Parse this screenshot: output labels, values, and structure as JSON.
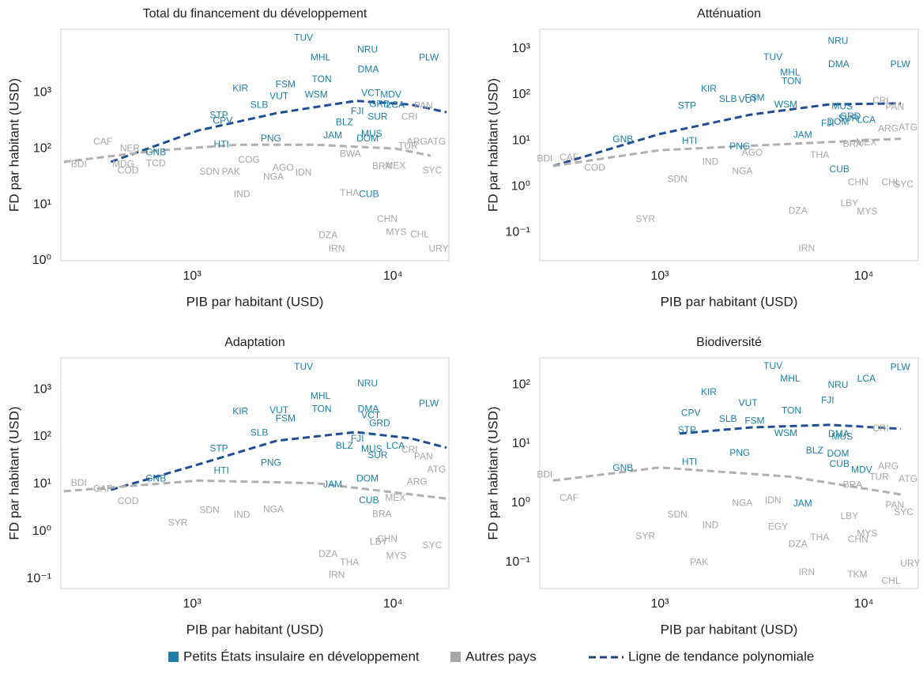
{
  "legend": [
    {
      "name": "Petits États insulaire en développement",
      "color": "#1b7fa6"
    },
    {
      "name": "Autres pays",
      "color": "#a6a6a6"
    },
    {
      "name": "Ligne de tendance polynomiale",
      "color": "#1f3f80"
    }
  ],
  "chart_data": [
    {
      "type": "scatter",
      "title": "Total du financement du développement",
      "xlabel": "PIB par habitant (USD)",
      "ylabel": "FD par habitant (USD)",
      "log_x": true,
      "log_y": true,
      "xlim": [
        222,
        19000
      ],
      "ylim": [
        1,
        13500
      ],
      "xticks": [
        {
          "value": 1000,
          "label": "10³"
        },
        {
          "value": 10000,
          "label": "10⁴"
        }
      ],
      "yticks": [
        {
          "value": 1,
          "label": "10⁰"
        },
        {
          "value": 10,
          "label": "10¹"
        },
        {
          "value": 100,
          "label": "10²"
        },
        {
          "value": 1000,
          "label": "10³"
        }
      ],
      "series": [
        {
          "color": "#1b7fa6",
          "labels": [
            "TUV",
            "MHL",
            "NRU",
            "DMA",
            "PLW",
            "KIR",
            "FSM",
            "VUT",
            "TON",
            "WSM",
            "SLB",
            "VCT",
            "MDV",
            "GRD",
            "LCA",
            "STP",
            "CPV",
            "FJI",
            "SUR",
            "BLZ",
            "MUS",
            "JAM",
            "DOM",
            "PNG",
            "HTI",
            "GNB",
            "CUB"
          ],
          "x": [
            3590,
            4360,
            7480,
            7540,
            15100,
            1740,
            2920,
            2710,
            4420,
            4150,
            2160,
            7760,
            9770,
            8590,
            10300,
            1360,
            1420,
            6650,
            8400,
            5740,
            7840,
            5020,
            7480,
            2470,
            1400,
            660,
            7600
          ],
          "values": [
            9300,
            4170,
            5750,
            2570,
            4170,
            1170,
            1380,
            850,
            1700,
            910,
            590,
            970,
            910,
            610,
            590,
            390,
            310,
            460,
            365,
            290,
            180,
            170,
            150,
            150,
            117,
            85,
            15
          ]
        },
        {
          "color": "#a6a6a6",
          "labels": [
            "BDI",
            "CAF",
            "MDG",
            "COD",
            "TCD",
            "NER",
            "SDN",
            "PAK",
            "IND",
            "COG",
            "NGA",
            "AGO",
            "IDN",
            "BWA",
            "BRA",
            "MEX",
            "ARG",
            "TUR",
            "PAN",
            "CRI",
            "ATG",
            "SYC",
            "THA",
            "CHN",
            "MYS",
            "CHL",
            "DZA",
            "IRN",
            "URY"
          ],
          "x": [
            273,
            359,
            454,
            480,
            660,
            490,
            1220,
            1560,
            1770,
            1920,
            2540,
            2840,
            3590,
            6140,
            8820,
            10300,
            13200,
            11900,
            14200,
            12100,
            16500,
            15700,
            6080,
            9370,
            10400,
            13600,
            4760,
            5250,
            16900
          ],
          "values": [
            52,
            130,
            52,
            40,
            54,
            100,
            38,
            38,
            15,
            62,
            31,
            45,
            37,
            79,
            48,
            49,
            130,
            110,
            575,
            365,
            130,
            40,
            16,
            5.4,
            3.2,
            2.9,
            2.8,
            1.6,
            1.6
          ]
        }
      ],
      "trends": [
        {
          "color": "#1f4e96",
          "x": [
            394,
            1070,
            2640,
            6530,
            12300,
            18500
          ],
          "values": [
            58,
            210,
            430,
            710,
            610,
            445
          ]
        },
        {
          "color": "#b0b0b0",
          "x": [
            230,
            680,
            1680,
            4150,
            10300,
            15400
          ],
          "values": [
            58,
            93,
            117,
            117,
            100,
            75
          ]
        }
      ]
    },
    {
      "type": "scatter",
      "title": "Atténuation",
      "xlabel": "PIB par habitant (USD)",
      "ylabel": "FD par habitant (USD)",
      "log_x": true,
      "log_y": true,
      "xlim": [
        258,
        18500
      ],
      "ylim": [
        0.024,
        2700
      ],
      "xticks": [
        {
          "value": 1000,
          "label": "10³"
        },
        {
          "value": 10000,
          "label": "10⁴"
        }
      ],
      "yticks": [
        {
          "value": 0.1,
          "label": "10⁻¹"
        },
        {
          "value": 1,
          "label": "10⁰"
        },
        {
          "value": 10,
          "label": "10¹"
        },
        {
          "value": 100,
          "label": "10²"
        },
        {
          "value": 1000,
          "label": "10³"
        }
      ],
      "series": [
        {
          "color": "#1b7fa6",
          "labels": [
            "NRU",
            "DMA",
            "PLW",
            "TUV",
            "MHL",
            "TON",
            "KIR",
            "STP",
            "SLB",
            "VUT",
            "FSM",
            "WSM",
            "MUS",
            "GRD",
            "LCA",
            "FJI",
            "DOM",
            "SUR",
            "JAM",
            "HTI",
            "PNG",
            "GNB",
            "CUB"
          ],
          "x": [
            7480,
            7540,
            15100,
            3590,
            4360,
            4420,
            1740,
            1360,
            2160,
            2710,
            2920,
            4150,
            7840,
            8590,
            10300,
            6650,
            7480,
            8400,
            5020,
            1400,
            2470,
            660,
            7600
          ],
          "values": [
            1480,
            455,
            455,
            650,
            300,
            195,
            132,
            57,
            79,
            76,
            85,
            60,
            55,
            33,
            28,
            23,
            25,
            30,
            13,
            9.6,
            7.3,
            10.5,
            2.3
          ]
        },
        {
          "color": "#a6a6a6",
          "labels": [
            "BDI",
            "CAF",
            "COD",
            "SDN",
            "NGA",
            "AGO",
            "IND",
            "SYR",
            "IRN",
            "DZA",
            "LBY",
            "MYS",
            "CHN",
            "CHL",
            "SYC",
            "BRA",
            "MEX",
            "ARG",
            "ATG",
            "PAN",
            "CRI",
            "THA"
          ],
          "x": [
            273,
            359,
            480,
            1220,
            2540,
            2840,
            1770,
            850,
            5250,
            4760,
            8500,
            10400,
            9370,
            13600,
            15700,
            8820,
            10300,
            13200,
            16500,
            14200,
            12100,
            6080
          ],
          "values": [
            4.0,
            4.2,
            2.5,
            1.4,
            2.1,
            5.3,
            3.4,
            0.19,
            0.044,
            0.29,
            0.42,
            0.28,
            1.2,
            1.2,
            1.1,
            8.2,
            8.9,
            18,
            19,
            53,
            73,
            4.7
          ]
        }
      ],
      "trends": [
        {
          "color": "#1f4e96",
          "x": [
            300,
            1000,
            2790,
            6800,
            15200
          ],
          "values": [
            2.8,
            14,
            37,
            62,
            65
          ]
        },
        {
          "color": "#b0b0b0",
          "x": [
            300,
            1000,
            4370,
            15200
          ],
          "values": [
            2.8,
            6.2,
            8.5,
            11
          ]
        }
      ]
    },
    {
      "type": "scatter",
      "title": "Adaptation",
      "xlabel": "PIB par habitant (USD)",
      "ylabel": "FD par habitant (USD)",
      "log_x": true,
      "log_y": true,
      "xlim": [
        222,
        19000
      ],
      "ylim": [
        0.063,
        4650
      ],
      "xticks": [
        {
          "value": 1000,
          "label": "10³"
        },
        {
          "value": 10000,
          "label": "10⁴"
        }
      ],
      "yticks": [
        {
          "value": 0.1,
          "label": "10⁻¹"
        },
        {
          "value": 1,
          "label": "10⁰"
        },
        {
          "value": 10,
          "label": "10¹"
        },
        {
          "value": 100,
          "label": "10²"
        },
        {
          "value": 1000,
          "label": "10³"
        }
      ],
      "series": [
        {
          "color": "#1b7fa6",
          "labels": [
            "TUV",
            "NRU",
            "MHL",
            "TON",
            "DMA",
            "VCT",
            "GRD",
            "PLW",
            "KIR",
            "VUT",
            "FSM",
            "SLB",
            "FJI",
            "BLZ",
            "MUS",
            "SUR",
            "LCA",
            "PNG",
            "STP",
            "HTI",
            "GNB",
            "JAM",
            "DOM",
            "CUB"
          ],
          "x": [
            3590,
            7480,
            4360,
            4420,
            7540,
            7760,
            8590,
            15100,
            1740,
            2710,
            2920,
            2160,
            6650,
            5740,
            7840,
            8400,
            10300,
            2470,
            1360,
            1400,
            660,
            5020,
            7480,
            7600
          ],
          "values": [
            2940,
            1310,
            710,
            380,
            380,
            280,
            190,
            500,
            340,
            355,
            240,
            120,
            89,
            63,
            54,
            40,
            63,
            28,
            56,
            19,
            13,
            9.6,
            13,
            4.5
          ]
        },
        {
          "color": "#a6a6a6",
          "labels": [
            "BDI",
            "CAF",
            "COD",
            "SYR",
            "SDN",
            "IND",
            "NGA",
            "IRN",
            "DZA",
            "THA",
            "MYS",
            "CHN",
            "LBY",
            "SYC",
            "BRA",
            "MEX",
            "ARG",
            "ATG",
            "PAN",
            "CRI"
          ],
          "x": [
            273,
            359,
            480,
            850,
            1220,
            1770,
            2540,
            5250,
            4760,
            6080,
            10400,
            9370,
            8500,
            15700,
            8820,
            10300,
            13200,
            16500,
            14200,
            12100
          ],
          "values": [
            10.5,
            7.9,
            4.3,
            1.5,
            2.8,
            2.2,
            2.9,
            0.12,
            0.33,
            0.22,
            0.3,
            0.68,
            0.6,
            0.5,
            2.3,
            5.0,
            11,
            20,
            38,
            52
          ]
        }
      ],
      "trends": [
        {
          "color": "#1f4e96",
          "x": [
            394,
            1070,
            2640,
            6530,
            12300,
            18500
          ],
          "values": [
            7.6,
            26,
            83,
            126,
            93,
            59
          ]
        },
        {
          "color": "#b0b0b0",
          "x": [
            230,
            1070,
            4150,
            18500
          ],
          "values": [
            7.1,
            12,
            10.5,
            5.0
          ]
        }
      ]
    },
    {
      "type": "scatter",
      "title": "Biodiversité",
      "xlabel": "PIB par habitant (USD)",
      "ylabel": "FD par habitant (USD)",
      "log_x": true,
      "log_y": true,
      "xlim": [
        258,
        18500
      ],
      "ylim": [
        0.036,
        285
      ],
      "xticks": [
        {
          "value": 1000,
          "label": "10³"
        },
        {
          "value": 10000,
          "label": "10⁴"
        }
      ],
      "yticks": [
        {
          "value": 0.1,
          "label": "10⁻¹"
        },
        {
          "value": 1,
          "label": "10⁰"
        },
        {
          "value": 10,
          "label": "10¹"
        },
        {
          "value": 100,
          "label": "10²"
        }
      ],
      "series": [
        {
          "color": "#1b7fa6",
          "labels": [
            "PLW",
            "TUV",
            "MHL",
            "LCA",
            "NRU",
            "KIR",
            "FJI",
            "VUT",
            "TON",
            "CPV",
            "SLB",
            "FSM",
            "STP",
            "WSM",
            "DMA",
            "MUS",
            "PNG",
            "BLZ",
            "DOM",
            "CUB",
            "MDV",
            "HTI",
            "GNB",
            "JAM"
          ],
          "x": [
            15100,
            3590,
            4360,
            10300,
            7480,
            1740,
            6650,
            2710,
            4420,
            1420,
            2160,
            2920,
            1360,
            4150,
            7540,
            7840,
            2470,
            5740,
            7480,
            7600,
            9770,
            1400,
            660,
            5020
          ],
          "values": [
            195,
            204,
            124,
            124,
            97,
            74,
            54,
            48,
            36,
            33,
            26,
            24,
            17,
            15,
            14.5,
            13,
            6.9,
            7.6,
            6.7,
            4.5,
            3.6,
            4.9,
            3.9,
            0.97
          ]
        },
        {
          "color": "#a6a6a6",
          "labels": [
            "BDI",
            "CAF",
            "SYR",
            "PAK",
            "IND",
            "SDN",
            "NGA",
            "EGY",
            "IDN",
            "DZA",
            "THA",
            "IRN",
            "TKM",
            "CHL",
            "URY",
            "MYS",
            "CHN",
            "LBY",
            "SYC",
            "PAN",
            "ARG",
            "TUR",
            "ATG",
            "CRI",
            "BRA"
          ],
          "x": [
            273,
            359,
            850,
            1560,
            1770,
            1220,
            2540,
            3800,
            3590,
            4760,
            6080,
            5250,
            9300,
            13600,
            16900,
            10400,
            9370,
            8500,
            15700,
            14200,
            13200,
            11900,
            16500,
            12100,
            8820
          ],
          "values": [
            3.0,
            1.2,
            0.27,
            0.098,
            0.42,
            0.63,
            0.98,
            0.39,
            1.1,
            0.2,
            0.26,
            0.067,
            0.061,
            0.048,
            0.094,
            0.3,
            0.24,
            0.59,
            0.69,
            0.91,
            4.1,
            2.7,
            2.5,
            18,
            2.0
          ]
        }
      ],
      "trends": [
        {
          "color": "#1f4e96",
          "x": [
            1250,
            2790,
            6800,
            15200
          ],
          "values": [
            15,
            19,
            21,
            18
          ]
        },
        {
          "color": "#b0b0b0",
          "x": [
            300,
            1000,
            4370,
            15200
          ],
          "values": [
            2.4,
            4.0,
            2.8,
            1.4
          ]
        }
      ]
    }
  ]
}
